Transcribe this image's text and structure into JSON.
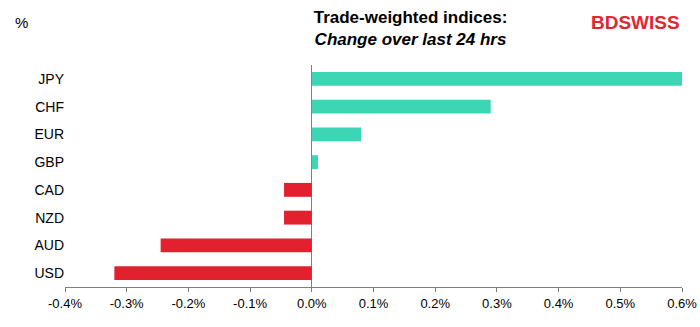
{
  "chart_data": {
    "type": "bar",
    "orientation": "horizontal",
    "title": "Trade-weighted indices:",
    "subtitle": "Change over last 24 hrs",
    "annotations": [
      "%",
      "BDSWISS"
    ],
    "categories": [
      "JPY",
      "CHF",
      "EUR",
      "GBP",
      "CAD",
      "NZD",
      "AUD",
      "USD"
    ],
    "values": [
      0.6,
      0.29,
      0.08,
      0.01,
      -0.045,
      -0.045,
      -0.245,
      -0.32
    ],
    "colors": [
      "#3dd6b5",
      "#3dd6b5",
      "#3dd6b5",
      "#3dd6b5",
      "#e3202e",
      "#e3202e",
      "#e3202e",
      "#e3202e"
    ],
    "xlim": [
      -0.4,
      0.6
    ],
    "xticks": [
      {
        "value": -0.4,
        "label": "-0.4%"
      },
      {
        "value": -0.3,
        "label": "-0.3%"
      },
      {
        "value": -0.2,
        "label": "-0.2%"
      },
      {
        "value": -0.1,
        "label": "-0.1%"
      },
      {
        "value": 0,
        "label": "0.0%"
      },
      {
        "value": 0.1,
        "label": "0.1%"
      },
      {
        "value": 0.2,
        "label": "0.2%"
      },
      {
        "value": 0.3,
        "label": "0.3%"
      },
      {
        "value": 0.4,
        "label": "0.4%"
      },
      {
        "value": 0.5,
        "label": "0.5%"
      },
      {
        "value": 0.6,
        "label": "0.6%"
      }
    ],
    "grid": false
  }
}
